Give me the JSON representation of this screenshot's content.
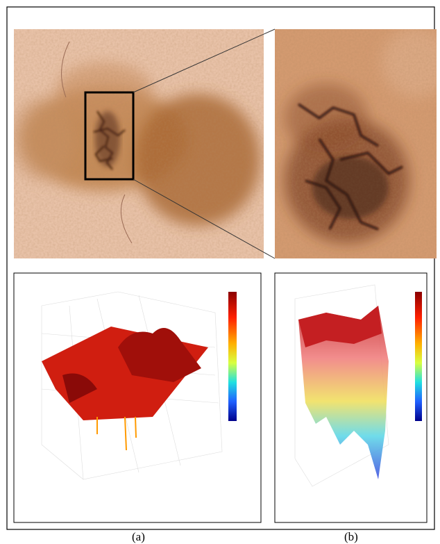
{
  "captions": {
    "a": "(a)",
    "b": "(b)"
  }
}
